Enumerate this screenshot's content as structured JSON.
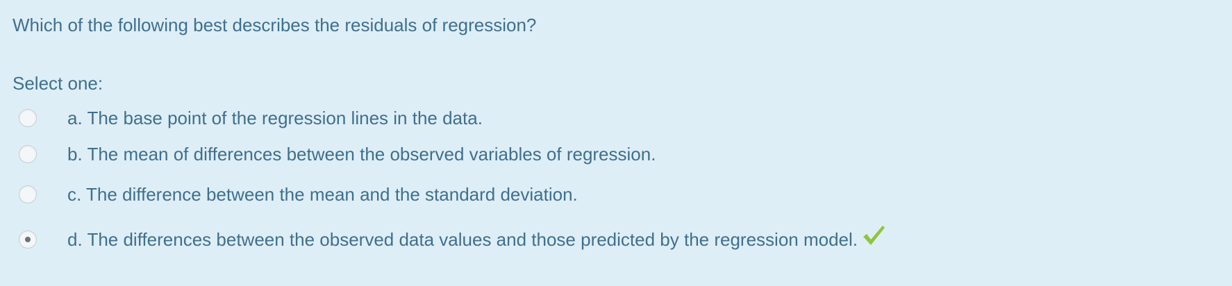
{
  "question": {
    "text": "Which of the following best describes the residuals of regression?",
    "prompt": "Select one:"
  },
  "options": [
    {
      "label": "a. The base point of the regression lines in the data.",
      "selected": false
    },
    {
      "label": "b. The mean of differences between the observed variables of regression.",
      "selected": false
    },
    {
      "label": "c. The difference between the mean and the standard deviation.",
      "selected": false
    },
    {
      "label": "d. The differences between the observed data values and those predicted by the regression model.",
      "selected": true,
      "feedback_icon": "checkmark-icon"
    }
  ],
  "colors": {
    "background": "#deeef6",
    "text": "#3f6f8f",
    "correct": "#8dc63f"
  }
}
